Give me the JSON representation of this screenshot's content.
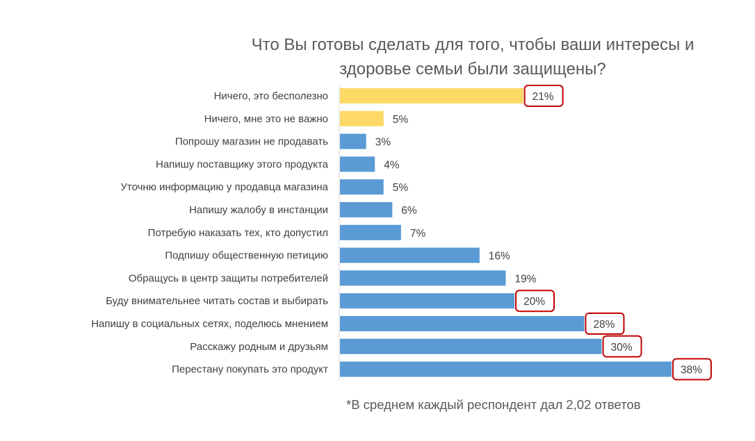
{
  "chart_data": {
    "type": "bar",
    "orientation": "horizontal",
    "title": [
      "Что Вы готовы сделать для того, чтобы ваши интересы и",
      "здоровье семьи были защищены?"
    ],
    "categories": [
      "Ничего, это бесполезно",
      "Ничего, мне это не важно",
      "Попрошу магазин не продавать",
      "Напишу поставщику этого продукта",
      "Уточню информацию у продавца магазина",
      "Напишу жалобу в инстанции",
      "Потребую наказать тех, кто допустил",
      "Подпишу общественную петицию",
      "Обращусь в центр защиты потребителей",
      "Буду внимательнее читать состав и выбирать",
      "Напишу в социальных сетях, поделюсь мнением",
      "Расскажу родным и друзьям",
      "Перестану покупать это продукт"
    ],
    "values": [
      21,
      5,
      3,
      4,
      5,
      6,
      7,
      16,
      19,
      20,
      28,
      30,
      38
    ],
    "value_labels": [
      "21%",
      "5%",
      "3%",
      "4%",
      "5%",
      "6%",
      "7%",
      "16%",
      "19%",
      "20%",
      "28%",
      "30%",
      "38%"
    ],
    "bar_colors": [
      "#FFD966",
      "#FFD966",
      "#5B9BD5",
      "#5B9BD5",
      "#5B9BD5",
      "#5B9BD5",
      "#5B9BD5",
      "#5B9BD5",
      "#5B9BD5",
      "#5B9BD5",
      "#5B9BD5",
      "#5B9BD5",
      "#5B9BD5"
    ],
    "highlighted": [
      true,
      false,
      false,
      false,
      false,
      false,
      false,
      false,
      false,
      true,
      true,
      true,
      true
    ],
    "highlight_color": "#C00000",
    "unit": "%",
    "xlim": [
      0,
      40
    ],
    "grid": false,
    "legend": "none",
    "footnote": "*В среднем каждый респондент дал 2,02 ответов"
  }
}
